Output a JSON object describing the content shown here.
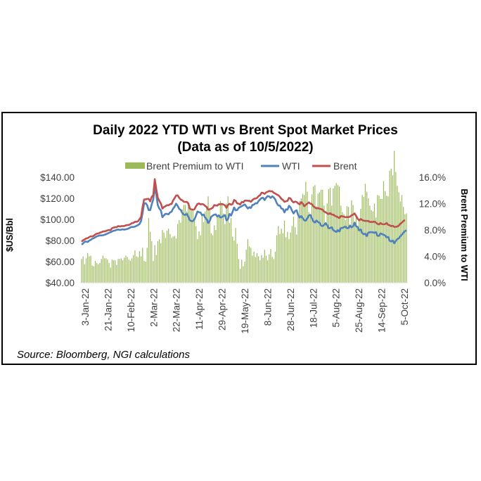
{
  "chart_data": {
    "type": "bar+line",
    "title": "Daily 2022 YTD WTI vs Brent Spot Market Prices",
    "subtitle": "(Data as of 10/5/2022)",
    "ylabel_left": "$US/Bbl",
    "ylabel_right": "Brent Premium to WTI",
    "ylim_left": [
      40,
      140
    ],
    "ylim_right": [
      0,
      16
    ],
    "yticks_left": [
      "$40.00",
      "$60.00",
      "$80.00",
      "$100.00",
      "$120.00",
      "$140.00"
    ],
    "yticks_right": [
      "0.0%",
      "4.0%",
      "8.0%",
      "12.0%",
      "16.0%"
    ],
    "xticks": [
      "3-Jan-22",
      "21-Jan-22",
      "10-Feb-22",
      "2-Mar-22",
      "22-Mar-22",
      "11-Apr-22",
      "29-Apr-22",
      "19-May-22",
      "8-Jun-22",
      "28-Jun-22",
      "18-Jul-22",
      "5-Aug-22",
      "25-Aug-22",
      "14-Sep-22",
      "5-Oct-22"
    ],
    "legend": [
      "Brent Premium to WTI",
      "WTI",
      "Brent"
    ],
    "colors": {
      "premium": "#9bbb59",
      "wti": "#4f81bd",
      "brent": "#c0504d"
    },
    "series": [
      {
        "name": "WTI",
        "values": [
          76.1,
          77.2,
          78.8,
          79.0,
          78.6,
          79.9,
          80.6,
          81.7,
          82.3,
          83.0,
          83.9,
          84.4,
          84.9,
          84.8,
          85.0,
          85.4,
          85.9,
          86.6,
          87.3,
          87.9,
          88.6,
          89.2,
          89.5,
          90.1,
          90.4,
          90.0,
          90.3,
          90.6,
          90.3,
          90.6,
          91.0,
          91.5,
          92.4,
          92.9,
          92.8,
          93.2,
          93.9,
          94.6,
          95.6,
          98.5,
          106.2,
          115.1,
          115.4,
          113.4,
          108.8,
          108.8,
          114.3,
          119.0,
          130.7,
          123.2,
          113.4,
          110.2,
          108.5,
          102.1,
          103.8,
          105.3,
          105.2,
          104.8,
          106.6,
          107.3,
          110.2,
          112.2,
          114.9,
          112.8,
          110.0,
          108.9,
          106.2,
          104.5,
          104.2,
          105.3,
          102.6,
          99.2,
          98.4,
          98.4,
          100.1,
          103.5,
          107.5,
          106.8,
          106.5,
          104.0,
          104.6,
          101.8,
          100.2,
          96.6,
          98.5,
          102.5,
          103.6,
          104.5,
          104.8,
          102.7,
          103.9,
          101.8,
          102.2,
          103.3,
          104.1,
          99.1,
          100.4,
          105.2,
          103.7,
          107.1,
          111.3,
          108.6,
          108.9,
          110.9,
          111.8,
          112.5,
          113.4,
          114.2,
          112.3,
          110.3,
          111.6,
          110.8,
          113.6,
          114.1,
          115.3,
          115.2,
          117.3,
          118.9,
          120.2,
          120.5,
          118.3,
          120.6,
          122.1,
          121.8,
          120.4,
          121.9,
          120.8,
          118.9,
          115.3,
          113.2,
          113.1,
          110.3,
          109.9,
          106.6,
          109.6,
          109.2,
          112.9,
          111.4,
          108.2,
          105.6,
          107.9,
          108.6,
          104.1,
          101.7,
          103.2,
          101.2,
          99.2,
          98.8,
          101.0,
          103.7,
          104.3,
          101.0,
          98.1,
          97.0,
          98.9,
          97.6,
          96.8,
          94.2,
          93.6,
          94.7,
          96.4,
          94.6,
          91.6,
          91.7,
          92.6,
          89.9,
          88.9,
          88.1,
          89.9,
          88.5,
          91.8,
          91.9,
          92.6,
          93.2,
          91.6,
          91.8,
          94.2,
          92.4,
          93.5,
          96.8,
          93.6,
          92.8,
          89.4,
          90.5,
          87.0,
          85.9,
          86.5,
          84.1,
          87.4,
          87.9,
          87.9,
          87.8,
          87.2,
          88.0,
          84.5,
          84.4,
          86.7,
          86.1,
          85.4,
          84.8,
          83.0,
          83.4,
          79.8,
          79.0,
          80.1,
          77.3,
          79.6,
          81.3,
          82.1,
          84.1,
          85.6,
          87.3,
          88.9,
          89.6
        ]
      },
      {
        "name": "Brent",
        "values": [
          78.9,
          80.3,
          81.0,
          82.0,
          82.2,
          83.2,
          84.0,
          83.9,
          84.4,
          85.7,
          86.5,
          86.7,
          87.4,
          87.8,
          88.6,
          88.6,
          89.1,
          89.6,
          89.9,
          89.9,
          91.7,
          92.2,
          92.6,
          92.6,
          93.7,
          93.3,
          93.6,
          93.7,
          93.7,
          94.4,
          94.6,
          94.7,
          95.5,
          96.4,
          96.7,
          97.8,
          97.7,
          98.3,
          100.2,
          102.4,
          111.8,
          118.9,
          119.0,
          119.4,
          119.5,
          117.1,
          121.5,
          122.9,
          138.2,
          128.4,
          120.5,
          117.5,
          115.0,
          110.3,
          111.7,
          112.5,
          113.5,
          113.4,
          114.4,
          114.6,
          118.0,
          120.2,
          122.6,
          122.8,
          120.5,
          118.8,
          118.1,
          116.8,
          116.5,
          116.7,
          115.1,
          110.2,
          109.5,
          109.2,
          109.6,
          112.4,
          114.6,
          115.1,
          114.2,
          114.6,
          114.2,
          112.8,
          111.8,
          109.3,
          109.6,
          110.2,
          111.1,
          113.6,
          113.2,
          113.1,
          114.4,
          114.4,
          114.6,
          114.2,
          113.3,
          111.0,
          113.6,
          114.8,
          113.9,
          114.6,
          118.4,
          117.6,
          115.2,
          114.9,
          114.1,
          116.5,
          116.2,
          117.8,
          117.9,
          117.6,
          117.7,
          116.7,
          118.3,
          119.5,
          119.8,
          120.3,
          122.0,
          122.9,
          125.3,
          125.1,
          124.2,
          125.6,
          126.2,
          127.0,
          126.6,
          126.6,
          125.2,
          124.5,
          123.6,
          122.9,
          121.5,
          119.4,
          118.5,
          116.6,
          117.2,
          117.6,
          120.4,
          119.8,
          117.4,
          116.1,
          116.9,
          116.5,
          115.1,
          114.3,
          116.4,
          114.9,
          112.4,
          113.9,
          114.9,
          116.1,
          114.9,
          114.5,
          112.4,
          111.3,
          110.4,
          110.8,
          110.1,
          109.8,
          109.1,
          107.5,
          106.8,
          105.8,
          105.0,
          106.0,
          104.6,
          104.5,
          103.5,
          102.8,
          102.0,
          101.4,
          103.2,
          102.9,
          102.6,
          102.0,
          102.3,
          102.2,
          102.6,
          103.9,
          104.5,
          105.7,
          103.2,
          100.7,
          99.1,
          100.4,
          99.4,
          98.8,
          98.6,
          98.5,
          98.6,
          97.5,
          97.7,
          97.6,
          98.0,
          96.9,
          95.8,
          95.2,
          96.6,
          95.5,
          95.4,
          95.5,
          96.6,
          94.8,
          94.5,
          93.6,
          94.0,
          92.9,
          93.0,
          93.2,
          94.2,
          95.9,
          97.0,
          98.4,
          99.5
        ]
      },
      {
        "name": "Brent Premium to WTI",
        "values": [
          3.6,
          4.0,
          2.8,
          3.7,
          4.5,
          4.0,
          4.1,
          2.6,
          2.5,
          3.3,
          3.0,
          2.8,
          3.0,
          3.6,
          4.1,
          3.7,
          3.7,
          3.5,
          3.0,
          2.3,
          3.5,
          3.4,
          3.4,
          2.7,
          3.6,
          3.6,
          3.7,
          3.4,
          3.8,
          4.1,
          3.9,
          3.5,
          3.3,
          3.7,
          4.2,
          4.9,
          4.0,
          3.9,
          4.8,
          4.0,
          5.3,
          3.3,
          3.2,
          5.3,
          9.8,
          7.7,
          6.3,
          3.3,
          5.7,
          4.2,
          6.3,
          6.6,
          6.0,
          8.0,
          7.6,
          6.8,
          7.9,
          8.2,
          7.4,
          6.8,
          7.0,
          7.1,
          6.7,
          8.9,
          9.5,
          9.1,
          11.1,
          11.8,
          11.8,
          10.8,
          12.2,
          11.1,
          11.2,
          11.0,
          9.5,
          8.6,
          6.6,
          7.8,
          7.2,
          10.2,
          9.2,
          10.8,
          11.6,
          13.1,
          11.3,
          7.5,
          7.2,
          8.7,
          8.0,
          10.1,
          10.1,
          12.4,
          12.1,
          10.5,
          8.9,
          12.0,
          13.1,
          9.1,
          9.8,
          7.0,
          6.4,
          8.3,
          5.9,
          3.6,
          2.1,
          3.5,
          2.5,
          3.2,
          5.0,
          6.6,
          5.5,
          5.3,
          4.1,
          4.7,
          3.9,
          4.5,
          4.0,
          3.4,
          4.2,
          3.8,
          5.0,
          4.1,
          3.4,
          4.3,
          5.1,
          3.9,
          3.6,
          4.7,
          7.2,
          8.6,
          7.4,
          8.2,
          7.5,
          9.4,
          6.9,
          7.7,
          6.6,
          7.6,
          8.6,
          10.0,
          8.4,
          7.3,
          10.6,
          12.4,
          12.8,
          13.5,
          13.3,
          15.3,
          13.8,
          10.7,
          10.2,
          13.4,
          14.6,
          14.8,
          11.6,
          13.5,
          13.7,
          14.1,
          14.1,
          11.7,
          8.9,
          12.0,
          14.2,
          14.4,
          11.7,
          14.3,
          14.7,
          15.1,
          14.8,
          14.6,
          11.7,
          10.7,
          10.4,
          9.5,
          11.6,
          11.5,
          8.8,
          12.5,
          11.8,
          9.3,
          10.3,
          8.6,
          9.6,
          11.2,
          13.3,
          13.0,
          15.0,
          13.8,
          12.8,
          11.7,
          11.0,
          10.8,
          12.0,
          9.9,
          13.3,
          13.2,
          12.7,
          12.7,
          15.4,
          13.9,
          13.2,
          13.1,
          17.0,
          17.3,
          16.3,
          20.0,
          16.8,
          14.7,
          13.7,
          12.3,
          13.3,
          11.5,
          10.4,
          10.5
        ]
      }
    ],
    "grid": false,
    "legend_position": "top"
  },
  "footer": {
    "source": "Source: Bloomberg, NGI calculations"
  }
}
